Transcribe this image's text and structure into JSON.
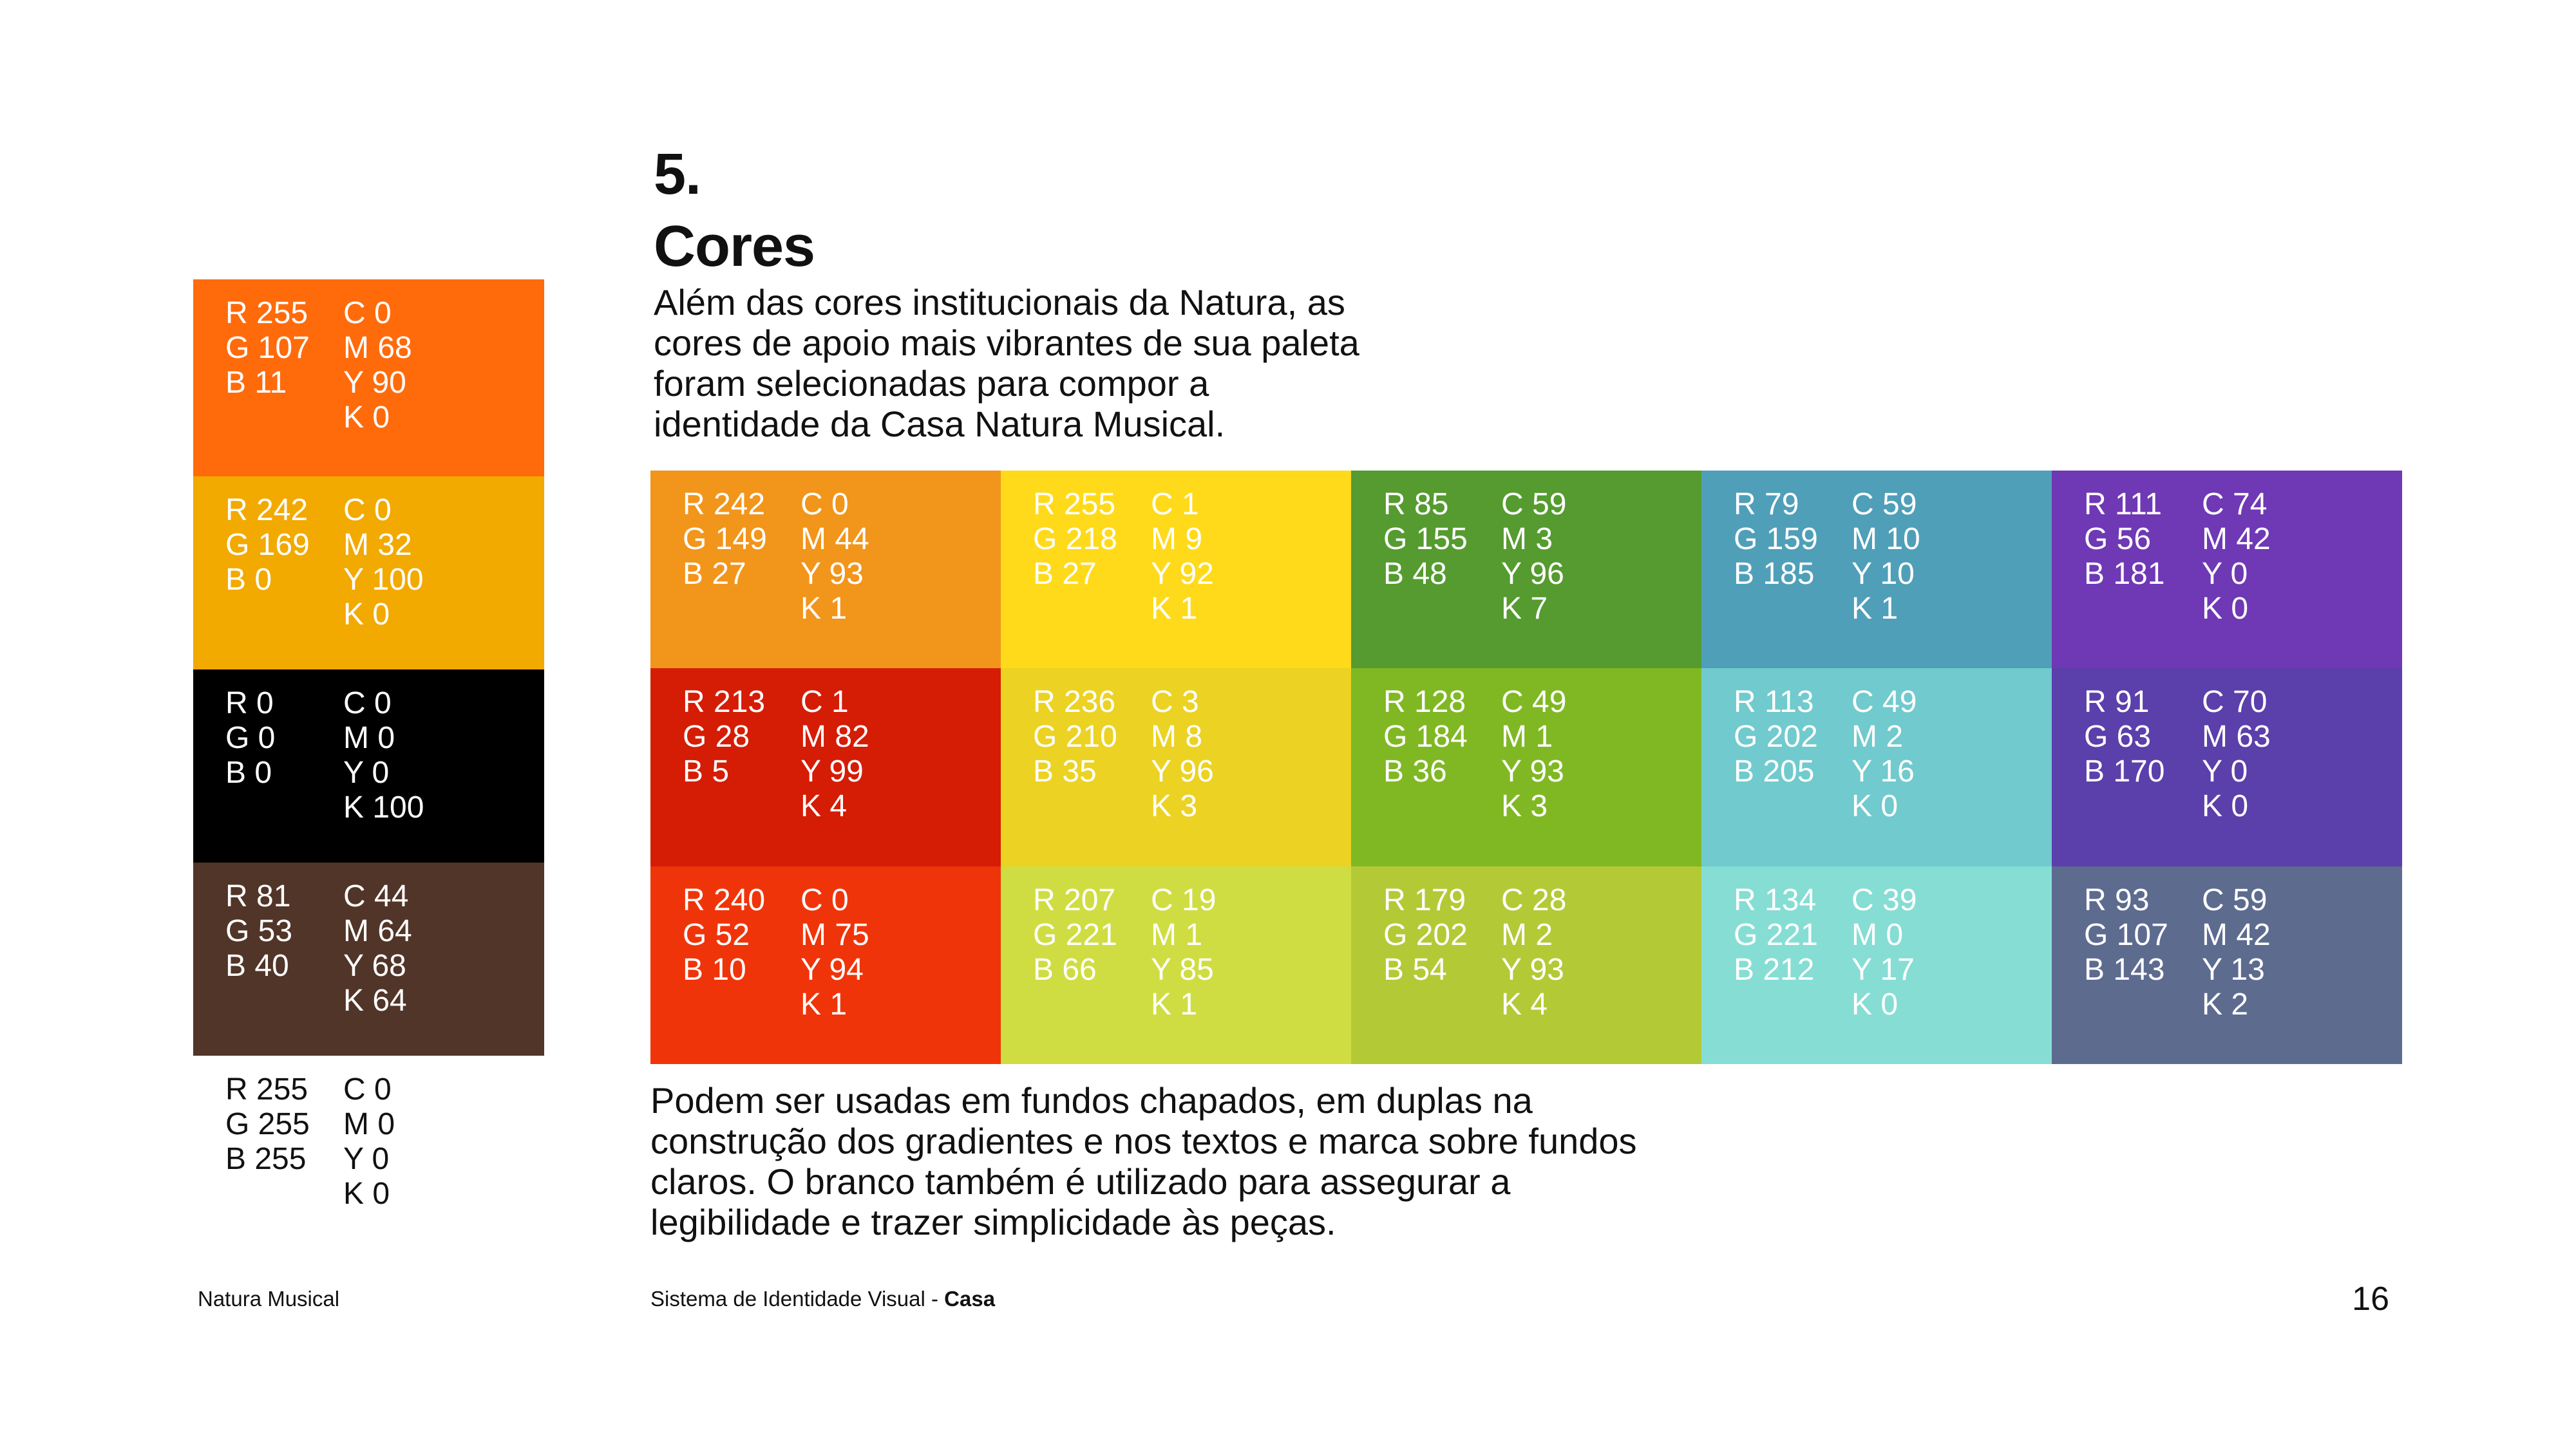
{
  "heading": {
    "number": "5.",
    "title": "Cores"
  },
  "intro": "Além das cores institucionais da Natura, as cores de apoio mais vibrantes de sua paleta foram selecionadas para compor a identidade da Casa Natura Musical.",
  "outro": "Podem ser usadas em fundos chapados, em duplas na construção dos gradientes e nos textos e marca sobre fundos claros. O branco também é utilizado para assegurar a legibilidade e trazer simplicidade às peças.",
  "footer": {
    "left": "Natura Musical",
    "center": "Sistema de Identidade Visual - ",
    "center_bold": "Casa",
    "page": "16"
  },
  "left_swatches": [
    {
      "color": "#ff6b0b",
      "text_color": "#ffffff",
      "rgb": [
        "R 255",
        "G 107",
        "B 11"
      ],
      "cmyk": [
        "C 0",
        "M 68",
        "Y 90",
        "K 0"
      ]
    },
    {
      "color": "#f2a900",
      "text_color": "#ffffff",
      "rgb": [
        "R 242",
        "G 169",
        "B 0"
      ],
      "cmyk": [
        "C 0",
        "M 32",
        "Y 100",
        "K 0"
      ]
    },
    {
      "color": "#000000",
      "text_color": "#ffffff",
      "rgb": [
        "R 0",
        "G 0",
        "B 0"
      ],
      "cmyk": [
        "C 0",
        "M 0",
        "Y 0",
        "K 100"
      ]
    },
    {
      "color": "#513528",
      "text_color": "#ffffff",
      "rgb": [
        "R 81",
        "G 53",
        "B 40"
      ],
      "cmyk": [
        "C 44",
        "M 64",
        "Y 68",
        "K 64"
      ]
    },
    {
      "color": "#ffffff",
      "text_color": "#111111",
      "rgb": [
        "R 255",
        "G 255",
        "B 255"
      ],
      "cmyk": [
        "C 0",
        "M 0",
        "Y 0",
        "K 0"
      ]
    }
  ],
  "grid_swatches": [
    {
      "color": "#f2951b",
      "rgb": [
        "R 242",
        "G 149",
        "B 27"
      ],
      "cmyk": [
        "C 0",
        "M 44",
        "Y 93",
        "K 1"
      ]
    },
    {
      "color": "#ffda1b",
      "rgb": [
        "R 255",
        "G 218",
        "B 27"
      ],
      "cmyk": [
        "C 1",
        "M 9",
        "Y 92",
        "K 1"
      ]
    },
    {
      "color": "#559b30",
      "rgb": [
        "R 85",
        "G 155",
        "B 48"
      ],
      "cmyk": [
        "C 59",
        "M 3",
        "Y 96",
        "K 7"
      ]
    },
    {
      "color": "#4f9fb9",
      "rgb": [
        "R 79",
        "G 159",
        "B 185"
      ],
      "cmyk": [
        "C 59",
        "M 10",
        "Y 10",
        "K 1"
      ]
    },
    {
      "color": "#6f38b5",
      "rgb": [
        "R 111",
        "G 56",
        "B 181"
      ],
      "cmyk": [
        "C 74",
        "M 42",
        "Y 0",
        "K 0"
      ]
    },
    {
      "color": "#d51c05",
      "rgb": [
        "R 213",
        "G 28",
        "B 5"
      ],
      "cmyk": [
        "C 1",
        "M 82",
        "Y 99",
        "K 4"
      ]
    },
    {
      "color": "#ecd223",
      "rgb": [
        "R 236",
        "G 210",
        "B 35"
      ],
      "cmyk": [
        "C 3",
        "M 8",
        "Y 96",
        "K 3"
      ]
    },
    {
      "color": "#80b824",
      "rgb": [
        "R 128",
        "G 184",
        "B 36"
      ],
      "cmyk": [
        "C 49",
        "M 1",
        "Y 93",
        "K 3"
      ]
    },
    {
      "color": "#71cacd",
      "rgb": [
        "R 113",
        "G 202",
        "B 205"
      ],
      "cmyk": [
        "C 49",
        "M 2",
        "Y 16",
        "K 0"
      ]
    },
    {
      "color": "#5b3faa",
      "rgb": [
        "R 91",
        "G 63",
        "B 170"
      ],
      "cmyk": [
        "C 70",
        "M 63",
        "Y 0",
        "K 0"
      ]
    },
    {
      "color": "#f0340a",
      "rgb": [
        "R 240",
        "G 52",
        "B 10"
      ],
      "cmyk": [
        "C 0",
        "M 75",
        "Y 94",
        "K 1"
      ]
    },
    {
      "color": "#cfdd42",
      "rgb": [
        "R 207",
        "G 221",
        "B 66"
      ],
      "cmyk": [
        "C 19",
        "M 1",
        "Y 85",
        "K 1"
      ]
    },
    {
      "color": "#b3ca36",
      "rgb": [
        "R 179",
        "G 202",
        "B 54"
      ],
      "cmyk": [
        "C 28",
        "M 2",
        "Y 93",
        "K 4"
      ]
    },
    {
      "color": "#86ddd4",
      "rgb": [
        "R 134",
        "G 221",
        "B 212"
      ],
      "cmyk": [
        "C 39",
        "M 0",
        "Y 17",
        "K 0"
      ]
    },
    {
      "color": "#5d6b8f",
      "rgb": [
        "R 93",
        "G 107",
        "B 143"
      ],
      "cmyk": [
        "C 59",
        "M 42",
        "Y 13",
        "K 2"
      ]
    }
  ]
}
